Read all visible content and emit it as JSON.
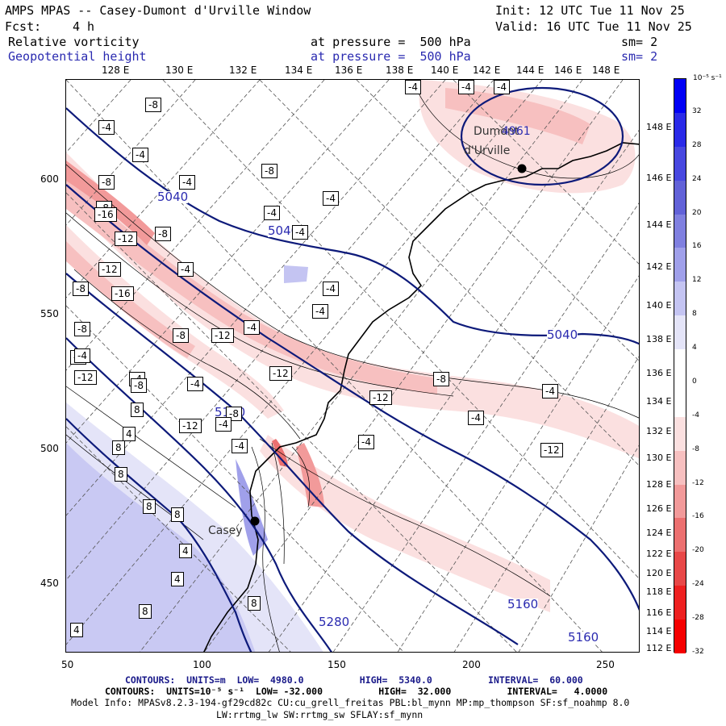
{
  "header": {
    "title": "AMPS MPAS -- Casey-Dumont d'Urville Window",
    "init": "Init: 12 UTC Tue 11 Nov 25",
    "fcst_label": "Fcst:",
    "fcst_value": "4 h",
    "valid": "Valid: 16 UTC Tue 11 Nov 25"
  },
  "fields": [
    {
      "name": "Relative vorticity",
      "level": "at pressure =  500 hPa",
      "smooth": "sm= 2",
      "color": "#000000"
    },
    {
      "name": "Geopotential height",
      "level": "at pressure =  500 hPa",
      "smooth": "sm= 2",
      "color": "#2a2ab0"
    }
  ],
  "top_longitudes": [
    "128 E",
    "130 E",
    "132 E",
    "134 E",
    "136 E",
    "138 E",
    "140 E",
    "142 E",
    "144 E",
    "146 E",
    "148 E"
  ],
  "right_longitudes": [
    "148 E",
    "146 E",
    "144 E",
    "142 E",
    "140 E",
    "138 E",
    "136 E",
    "134 E",
    "132 E",
    "130 E",
    "128 E",
    "126 E",
    "124 E",
    "122 E",
    "120 E",
    "118 E",
    "116 E",
    "114 E",
    "112 E"
  ],
  "y_axis_labels": [
    "600",
    "550",
    "500",
    "450"
  ],
  "x_axis_labels": [
    "50",
    "100",
    "150",
    "200",
    "250"
  ],
  "colorbar": {
    "units": "10⁻⁵ s⁻¹",
    "labels": [
      "32",
      "28",
      "24",
      "20",
      "16",
      "12",
      "8",
      "4",
      "0",
      "-4",
      "-8",
      "-12",
      "-16",
      "-20",
      "-24",
      "-28",
      "-32"
    ],
    "colors": [
      "#0000f5",
      "#2a2ae8",
      "#4848e0",
      "#6262d8",
      "#8080e0",
      "#a0a0ea",
      "#c4c4f2",
      "#e4e4f8",
      "#ffffff",
      "#ffffff",
      "#fbe0e0",
      "#f7c0c0",
      "#f29a9a",
      "#ec7070",
      "#e84848",
      "#ee2020",
      "#f50000"
    ]
  },
  "map": {
    "stations": [
      {
        "name": "Casey",
        "label": "Casey"
      },
      {
        "name": "dumont",
        "label1": "Dumont",
        "label2": "d'Urville"
      }
    ],
    "height_labels": [
      "5040",
      "5040",
      "5040",
      "5160",
      "5160",
      "5160",
      "5280"
    ],
    "vorticity_boxes": [
      "-8",
      "-4",
      "-4",
      "-8",
      "-4",
      "-8",
      "-4",
      "-4",
      "-8",
      "-16",
      "-12",
      "-8",
      "-4",
      "-4",
      "-8",
      "-12",
      "-16",
      "-8",
      "-4",
      "-4",
      "-8",
      "-12",
      "-12",
      "-4",
      "-8",
      "-4",
      "-12",
      "-4",
      "-4",
      "-12",
      "-8",
      "-4",
      "-12",
      "-4",
      "-4",
      "-8",
      "-12",
      "-4",
      "-8",
      "8",
      "4",
      "8",
      "8",
      "8",
      "8",
      "4",
      "4",
      "8",
      "8",
      "4",
      "-4",
      "-4",
      "-4",
      "-4"
    ],
    "low_label": "4961"
  },
  "footer": {
    "height_contours": "CONTOURS:  UNITS=m  LOW=  4980.0          HIGH=  5340.0          INTERVAL=  60.000",
    "vort_contours": "CONTOURS:  UNITS=10⁻⁵ s⁻¹  LOW= -32.000          HIGH=  32.000          INTERVAL=   4.0000",
    "model_info": "Model Info: MPASv8.2.3-194-gf29cd82c CU:cu_grell_freitas PBL:bl_mynn MP:mp_thompson SF:sf_noahmp 8.0",
    "model_info2": "LW:rrtmg_lw SW:rrtmg_sw SFLAY:sf_mynn"
  }
}
